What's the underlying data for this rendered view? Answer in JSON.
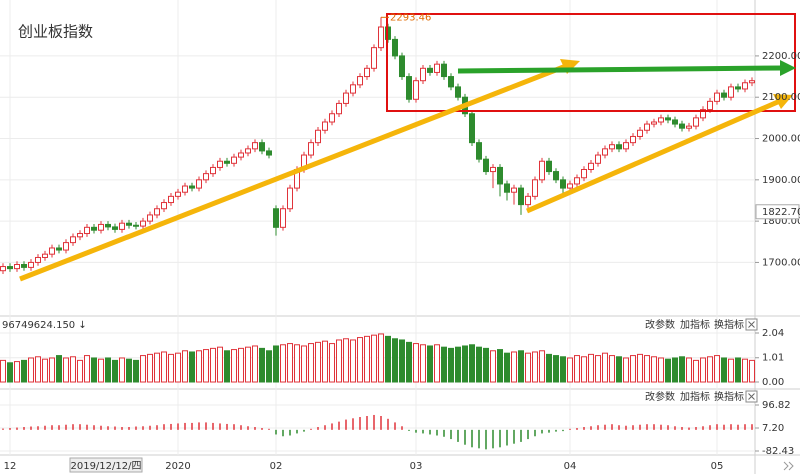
{
  "title": "创业板指数",
  "indicator_controls": [
    "改参数",
    "加指标",
    "换指标"
  ],
  "chart_data": [
    {
      "type": "candlestick",
      "categories": [
        null,
        "12",
        null,
        null,
        null,
        null,
        null,
        null,
        null,
        null,
        null,
        null,
        null,
        null,
        null,
        null,
        null,
        null,
        null,
        null,
        null,
        null,
        null,
        null,
        null,
        "2020",
        null,
        null,
        null,
        null,
        null,
        null,
        null,
        null,
        null,
        null,
        null,
        null,
        null,
        "02",
        null,
        null,
        null,
        null,
        null,
        null,
        null,
        null,
        null,
        null,
        null,
        null,
        null,
        null,
        null,
        null,
        null,
        null,
        null,
        "03",
        null,
        null,
        null,
        null,
        null,
        null,
        null,
        null,
        null,
        null,
        null,
        null,
        null,
        null,
        null,
        null,
        null,
        null,
        null,
        null,
        null,
        "04",
        null,
        null,
        null,
        null,
        null,
        null,
        null,
        null,
        null,
        null,
        null,
        null,
        null,
        null,
        null,
        null,
        null,
        null,
        null,
        null,
        "05",
        null,
        null,
        null,
        null,
        null
      ],
      "open": [
        1680,
        1690,
        1685,
        1695,
        1688,
        1700,
        1712,
        1720,
        1735,
        1730,
        1748,
        1762,
        1770,
        1785,
        1778,
        1792,
        1786,
        1780,
        1795,
        1790,
        1788,
        1800,
        1815,
        1830,
        1845,
        1860,
        1870,
        1885,
        1880,
        1900,
        1915,
        1930,
        1945,
        1940,
        1955,
        1965,
        1975,
        1990,
        1970,
        1830,
        1785,
        1830,
        1880,
        1925,
        1960,
        1990,
        2020,
        2040,
        2060,
        2085,
        2110,
        2130,
        2150,
        2170,
        2220,
        2270,
        2240,
        2200,
        2150,
        2095,
        2140,
        2170,
        2160,
        2180,
        2150,
        2125,
        2100,
        2060,
        1990,
        1950,
        1920,
        1930,
        1890,
        1870,
        1880,
        1840,
        1860,
        1900,
        1945,
        1920,
        1900,
        1880,
        1890,
        1905,
        1925,
        1940,
        1960,
        1975,
        1985,
        1975,
        1990,
        2005,
        2020,
        2035,
        2040,
        2050,
        2045,
        2035,
        2025,
        2030,
        2050,
        2070,
        2090,
        2110,
        2100,
        2125,
        2120,
        2135
      ],
      "high": [
        1698,
        1698,
        1703,
        1703,
        1708,
        1720,
        1728,
        1743,
        1743,
        1756,
        1770,
        1778,
        1793,
        1793,
        1800,
        1800,
        1794,
        1803,
        1803,
        1798,
        1808,
        1823,
        1838,
        1853,
        1868,
        1878,
        1893,
        1893,
        1908,
        1923,
        1938,
        1953,
        1953,
        1963,
        1973,
        1983,
        1998,
        1998,
        1978,
        1838,
        1838,
        1888,
        1933,
        1968,
        1998,
        2028,
        2048,
        2068,
        2093,
        2118,
        2138,
        2158,
        2178,
        2228,
        2293.46,
        2278,
        2248,
        2208,
        2158,
        2148,
        2178,
        2178,
        2188,
        2188,
        2158,
        2133,
        2108,
        2068,
        1998,
        1958,
        1938,
        1938,
        1898,
        1888,
        1888,
        1868,
        1908,
        1953,
        1953,
        1928,
        1908,
        1898,
        1913,
        1933,
        1948,
        1968,
        1983,
        1993,
        1993,
        1998,
        2013,
        2028,
        2043,
        2048,
        2058,
        2058,
        2053,
        2043,
        2038,
        2058,
        2078,
        2098,
        2118,
        2118,
        2133,
        2133,
        2143,
        2148
      ],
      "low": [
        1672,
        1677,
        1677,
        1680,
        1680,
        1692,
        1704,
        1712,
        1722,
        1722,
        1740,
        1754,
        1762,
        1770,
        1770,
        1778,
        1772,
        1772,
        1782,
        1780,
        1780,
        1792,
        1807,
        1822,
        1837,
        1852,
        1862,
        1872,
        1872,
        1892,
        1907,
        1922,
        1932,
        1932,
        1947,
        1957,
        1967,
        1962,
        1952,
        1765,
        1777,
        1822,
        1872,
        1917,
        1952,
        1982,
        2012,
        2032,
        2052,
        2077,
        2102,
        2122,
        2142,
        2162,
        2212,
        2232,
        2192,
        2142,
        2087,
        2087,
        2132,
        2152,
        2152,
        2142,
        2117,
        2092,
        2052,
        1982,
        1942,
        1912,
        1880,
        1860,
        1850,
        1840,
        1815,
        1832,
        1852,
        1892,
        1912,
        1892,
        1862,
        1872,
        1882,
        1897,
        1917,
        1932,
        1952,
        1967,
        1967,
        1967,
        1982,
        1997,
        2012,
        2027,
        2032,
        2037,
        2027,
        2017,
        2017,
        2022,
        2042,
        2062,
        2082,
        2092,
        2092,
        2112,
        2112,
        2127
      ],
      "close": [
        1690,
        1685,
        1695,
        1688,
        1700,
        1712,
        1720,
        1735,
        1730,
        1748,
        1762,
        1770,
        1785,
        1778,
        1792,
        1786,
        1780,
        1795,
        1790,
        1788,
        1800,
        1815,
        1830,
        1845,
        1860,
        1870,
        1885,
        1880,
        1900,
        1915,
        1930,
        1945,
        1940,
        1955,
        1965,
        1975,
        1990,
        1970,
        1960,
        1785,
        1830,
        1880,
        1925,
        1960,
        1990,
        2020,
        2040,
        2060,
        2085,
        2110,
        2130,
        2150,
        2170,
        2220,
        2270,
        2240,
        2200,
        2150,
        2095,
        2140,
        2170,
        2160,
        2180,
        2150,
        2125,
        2100,
        2060,
        1990,
        1950,
        1920,
        1930,
        1890,
        1870,
        1880,
        1840,
        1860,
        1900,
        1945,
        1920,
        1900,
        1880,
        1890,
        1905,
        1925,
        1940,
        1960,
        1975,
        1985,
        1975,
        1990,
        2005,
        2020,
        2035,
        2040,
        2050,
        2045,
        2035,
        2025,
        2030,
        2050,
        2070,
        2090,
        2110,
        2100,
        2125,
        2120,
        2135,
        2140
      ],
      "ylim": [
        1580,
        2316
      ],
      "yticks": [
        {
          "value": 1700,
          "label": "1700.00"
        },
        {
          "value": 1800,
          "label": "1800.00"
        },
        {
          "value": 1900,
          "label": "1900.00"
        },
        {
          "value": 2000,
          "label": "2000.00"
        },
        {
          "value": 2100,
          "label": "2100.00"
        },
        {
          "value": 2200,
          "label": "2200.00"
        }
      ],
      "up_color": "#e0333a",
      "down_color": "#2e8b2e",
      "grid": true,
      "cursor": {
        "date": "2019/12/12/四",
        "price": {
          "value": 1822.7,
          "label": "1822.70"
        }
      }
    },
    {
      "type": "volume",
      "header": "96749624.150 ↓",
      "values": [
        0.9,
        0.8,
        0.85,
        0.9,
        1.0,
        1.05,
        0.95,
        1.0,
        1.1,
        1.0,
        1.05,
        0.9,
        1.1,
        1.0,
        0.95,
        1.0,
        0.9,
        1.0,
        0.95,
        0.9,
        1.1,
        1.15,
        1.2,
        1.25,
        1.15,
        1.2,
        1.3,
        1.25,
        1.3,
        1.35,
        1.4,
        1.45,
        1.3,
        1.35,
        1.4,
        1.45,
        1.5,
        1.4,
        1.3,
        1.5,
        1.55,
        1.6,
        1.55,
        1.5,
        1.6,
        1.65,
        1.7,
        1.6,
        1.75,
        1.8,
        1.75,
        1.85,
        1.9,
        1.95,
        2.0,
        1.9,
        1.8,
        1.75,
        1.65,
        1.6,
        1.55,
        1.5,
        1.55,
        1.45,
        1.4,
        1.45,
        1.5,
        1.55,
        1.45,
        1.4,
        1.3,
        1.35,
        1.2,
        1.25,
        1.3,
        1.2,
        1.25,
        1.3,
        1.15,
        1.1,
        1.05,
        1.0,
        1.1,
        1.05,
        1.15,
        1.1,
        1.2,
        1.1,
        1.05,
        1.0,
        1.1,
        1.15,
        1.1,
        1.05,
        1.0,
        0.95,
        1.0,
        1.05,
        1.0,
        0.9,
        1.0,
        1.05,
        1.1,
        1.0,
        0.95,
        1.0,
        0.95,
        0.9
      ],
      "ylim": [
        0,
        2.04
      ],
      "yticks": [
        {
          "value": 0,
          "label": "0.00"
        },
        1.01,
        2.04
      ]
    },
    {
      "type": "macd",
      "values": [
        5,
        7,
        9,
        11,
        13,
        14,
        16,
        18,
        18,
        20,
        22,
        22,
        20,
        18,
        16,
        14,
        13,
        11,
        11,
        13,
        14,
        16,
        18,
        22,
        23,
        25,
        27,
        27,
        29,
        29,
        27,
        25,
        23,
        22,
        18,
        14,
        11,
        7,
        4,
        -18,
        -25,
        -22,
        -14,
        -7,
        4,
        11,
        18,
        25,
        32,
        40,
        45,
        50,
        54,
        58,
        54,
        43,
        29,
        14,
        -4,
        -11,
        -14,
        -18,
        -22,
        -27,
        -36,
        -47,
        -58,
        -68,
        -72,
        -76,
        -72,
        -68,
        -61,
        -54,
        -47,
        -36,
        -25,
        -14,
        -11,
        -7,
        -5,
        4,
        7,
        11,
        14,
        18,
        20,
        22,
        18,
        16,
        18,
        20,
        22,
        22,
        20,
        18,
        14,
        11,
        9,
        11,
        14,
        18,
        22,
        20,
        22,
        20,
        22,
        22
      ],
      "ylim": [
        -82.43,
        96.82
      ],
      "yticks": [
        96.82,
        {
          "value": 7.2,
          "label": "7.20"
        },
        -82.43
      ],
      "up_color": "#e0333a",
      "down_color": "#2e8b2e"
    }
  ]
}
